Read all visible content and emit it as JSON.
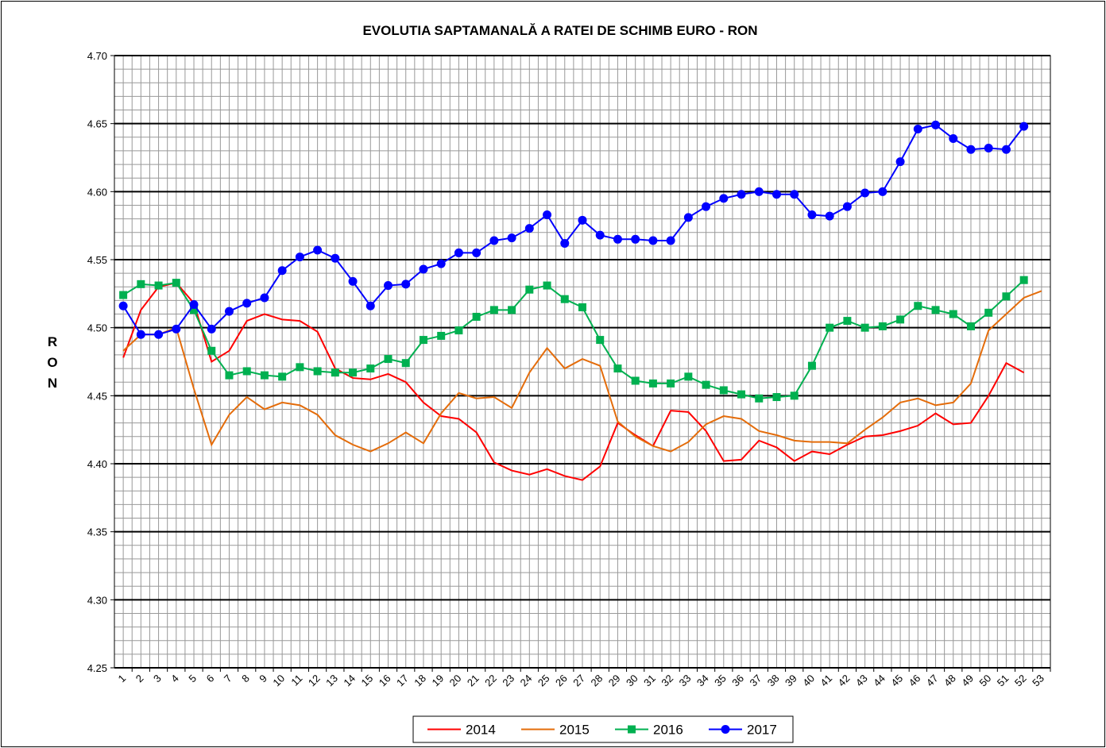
{
  "chart_data": {
    "type": "line",
    "title": "EVOLUTIA SAPTAMANALĂ A RATEI DE SCHIMB EURO - RON",
    "y_label": "RON",
    "categories": [
      "1",
      "2",
      "3",
      "4",
      "5",
      "6",
      "7",
      "8",
      "9",
      "10",
      "11",
      "12",
      "13",
      "14",
      "15",
      "16",
      "17",
      "18",
      "19",
      "20",
      "21",
      "22",
      "23",
      "24",
      "25",
      "26",
      "27",
      "28",
      "29",
      "30",
      "31",
      "32",
      "33",
      "34",
      "35",
      "36",
      "37",
      "38",
      "39",
      "40",
      "41",
      "42",
      "43",
      "44",
      "45",
      "46",
      "47",
      "48",
      "49",
      "50",
      "51",
      "52",
      "53"
    ],
    "series": [
      {
        "name": "2014",
        "color": "#ff0000",
        "marker": "none",
        "values": [
          4.478,
          4.513,
          4.53,
          4.533,
          4.518,
          4.475,
          4.483,
          4.505,
          4.51,
          4.506,
          4.505,
          4.497,
          4.47,
          4.463,
          4.462,
          4.466,
          4.46,
          4.445,
          4.435,
          4.433,
          4.423,
          4.401,
          4.395,
          4.392,
          4.396,
          4.391,
          4.388,
          4.398,
          4.43,
          4.421,
          4.413,
          4.439,
          4.438,
          4.424,
          4.402,
          4.403,
          4.417,
          4.412,
          4.402,
          4.409,
          4.407,
          4.414,
          4.42,
          4.421,
          4.424,
          4.428,
          4.437,
          4.429,
          4.43,
          4.45,
          4.474,
          4.467,
          null
        ]
      },
      {
        "name": "2015",
        "color": "#e46c0a",
        "marker": "none",
        "values": [
          4.483,
          4.495,
          4.495,
          4.5,
          4.455,
          4.414,
          4.436,
          4.449,
          4.44,
          4.445,
          4.443,
          4.436,
          4.421,
          4.414,
          4.409,
          4.415,
          4.423,
          4.415,
          4.437,
          4.452,
          4.448,
          4.449,
          4.441,
          4.467,
          4.485,
          4.47,
          4.477,
          4.472,
          4.431,
          4.42,
          4.413,
          4.409,
          4.416,
          4.429,
          4.435,
          4.433,
          4.424,
          4.421,
          4.417,
          4.416,
          4.416,
          4.415,
          4.425,
          4.434,
          4.445,
          4.448,
          4.443,
          4.445,
          4.459,
          4.498,
          4.51,
          4.522,
          4.527
        ]
      },
      {
        "name": "2016",
        "color": "#00b050",
        "marker": "square",
        "values": [
          4.524,
          4.532,
          4.531,
          4.533,
          4.513,
          4.483,
          4.465,
          4.468,
          4.465,
          4.464,
          4.471,
          4.468,
          4.467,
          4.467,
          4.47,
          4.477,
          4.474,
          4.491,
          4.494,
          4.498,
          4.508,
          4.513,
          4.513,
          4.528,
          4.531,
          4.521,
          4.515,
          4.491,
          4.47,
          4.461,
          4.459,
          4.459,
          4.464,
          4.458,
          4.454,
          4.451,
          4.448,
          4.449,
          4.45,
          4.472,
          4.5,
          4.505,
          4.5,
          4.501,
          4.506,
          4.516,
          4.513,
          4.51,
          4.501,
          4.511,
          4.523,
          4.535,
          null
        ]
      },
      {
        "name": "2017",
        "color": "#0000ff",
        "marker": "circle",
        "values": [
          4.516,
          4.495,
          4.495,
          4.499,
          4.517,
          4.499,
          4.512,
          4.518,
          4.522,
          4.542,
          4.552,
          4.557,
          4.551,
          4.534,
          4.516,
          4.531,
          4.532,
          4.543,
          4.547,
          4.555,
          4.555,
          4.564,
          4.566,
          4.573,
          4.583,
          4.562,
          4.579,
          4.568,
          4.565,
          4.565,
          4.564,
          4.564,
          4.581,
          4.589,
          4.595,
          4.598,
          4.6,
          4.598,
          4.598,
          4.583,
          4.582,
          4.589,
          4.599,
          4.6,
          4.622,
          4.646,
          4.649,
          4.639,
          4.631,
          4.632,
          4.631,
          4.648,
          null
        ]
      }
    ],
    "ylim": [
      4.25,
      4.7
    ],
    "yticks": [
      4.25,
      {
        "value": 4.3,
        "label": "4.30"
      },
      4.35,
      {
        "value": 4.4,
        "label": "4.40"
      },
      4.45,
      {
        "value": 4.5,
        "label": "4.50"
      },
      4.55,
      {
        "value": 4.6,
        "label": "4.60"
      },
      4.65,
      {
        "value": 4.7,
        "label": "4.70"
      }
    ],
    "grid": true,
    "legend": "bottom"
  }
}
